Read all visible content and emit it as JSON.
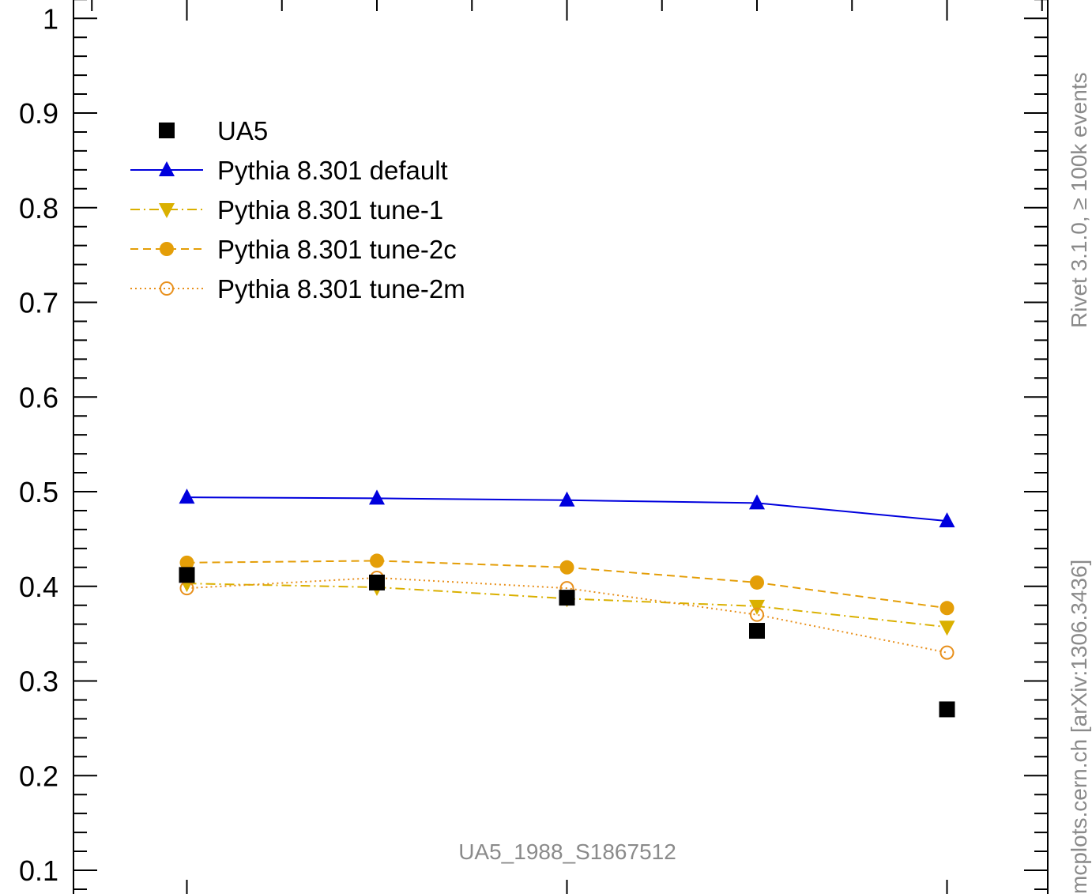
{
  "chart_data": {
    "type": "line",
    "title": "",
    "xlabel": "",
    "ylabel": "",
    "ylim": [
      0.1,
      1.0
    ],
    "x_ticks_major": [
      1,
      3,
      5
    ],
    "x_ticks_minor": [
      0.5,
      1.5,
      2,
      2.5,
      3.5,
      4,
      4.5,
      5.5
    ],
    "y_ticks": [
      {
        "value": 0.1,
        "label": "0.1"
      },
      {
        "value": 0.2,
        "label": "0.2"
      },
      {
        "value": 0.3,
        "label": "0.3"
      },
      {
        "value": 0.4,
        "label": "0.4"
      },
      {
        "value": 0.5,
        "label": "0.5"
      },
      {
        "value": 0.6,
        "label": "0.6"
      },
      {
        "value": 0.7,
        "label": "0.7"
      },
      {
        "value": 0.8,
        "label": "0.8"
      },
      {
        "value": 0.9,
        "label": "0.9"
      },
      {
        "value": 1.0,
        "label": "1"
      }
    ],
    "x": [
      1,
      2,
      3,
      4,
      5
    ],
    "series": [
      {
        "name": "UA5",
        "color": "#000000",
        "marker": "square",
        "line": "none",
        "values": [
          0.412,
          0.404,
          0.388,
          0.353,
          0.27
        ]
      },
      {
        "name": "Pythia 8.301 default",
        "color": "#0000dd",
        "marker": "triangle-up",
        "line": "solid",
        "values": [
          0.494,
          0.493,
          0.491,
          0.488,
          0.469
        ]
      },
      {
        "name": "Pythia 8.301 tune-1",
        "color": "#dab000",
        "marker": "triangle-down",
        "line": "dashdot",
        "values": [
          0.403,
          0.399,
          0.387,
          0.379,
          0.357
        ]
      },
      {
        "name": "Pythia 8.301 tune-2c",
        "color": "#e49e08",
        "marker": "circle-filled",
        "line": "dashed",
        "values": [
          0.425,
          0.427,
          0.42,
          0.404,
          0.377
        ]
      },
      {
        "name": "Pythia 8.301 tune-2m",
        "color": "#e8901c",
        "marker": "circle-open",
        "line": "dotted",
        "values": [
          0.398,
          0.409,
          0.398,
          0.37,
          0.33
        ]
      }
    ],
    "legend": {
      "position": "top-left"
    },
    "annotation": "UA5_1988_S1867512",
    "side_text_top": "Rivet 3.1.0, ≥ 100k events",
    "side_text_bottom": "mcplots.cern.ch [arXiv:1306.3436]"
  }
}
